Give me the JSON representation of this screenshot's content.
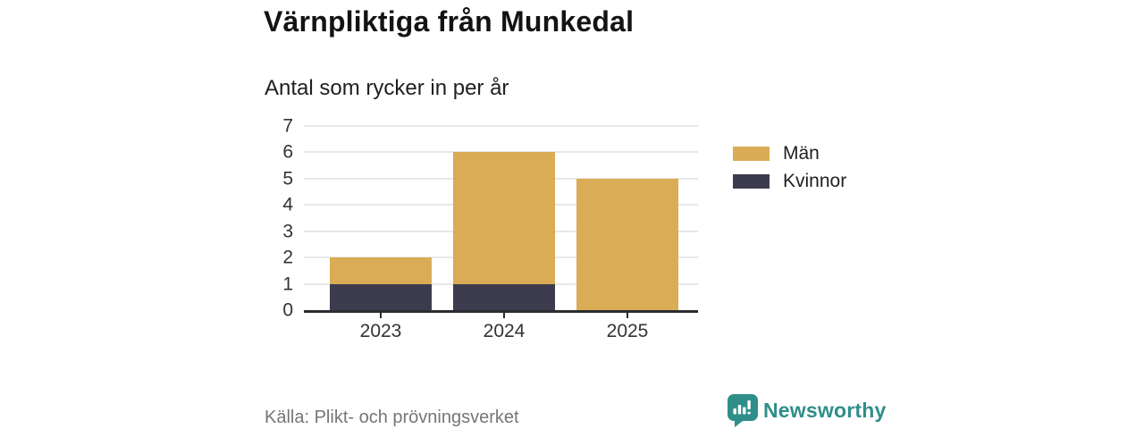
{
  "header": {
    "title": "Värnpliktiga från Munkedal",
    "subtitle": "Antal som rycker in per år"
  },
  "chart_data": {
    "type": "bar",
    "stacked": true,
    "categories": [
      "2023",
      "2024",
      "2025"
    ],
    "series": [
      {
        "name": "Män",
        "color": "#DAAC55",
        "values": [
          1,
          5,
          5
        ]
      },
      {
        "name": "Kvinnor",
        "color": "#3D3C4E",
        "values": [
          1,
          1,
          0
        ]
      }
    ],
    "totals": [
      2,
      6,
      5
    ],
    "title": "Värnpliktiga från Munkedal",
    "subtitle": "Antal som rycker in per år",
    "xlabel": "",
    "ylabel": "",
    "ylim": [
      0,
      7
    ],
    "yticks": [
      0,
      1,
      2,
      3,
      4,
      5,
      6,
      7
    ],
    "grid": true,
    "legend_position": "right"
  },
  "colors": {
    "men": "#DAAC55",
    "women": "#3D3C4E",
    "axis": "#2B2B31",
    "gridline": "#E8E8E8",
    "brand_teal": "#2F8E8A"
  },
  "footer": {
    "source": "Källa: Plikt- och prövningsverket",
    "brand": "Newsworthy"
  }
}
